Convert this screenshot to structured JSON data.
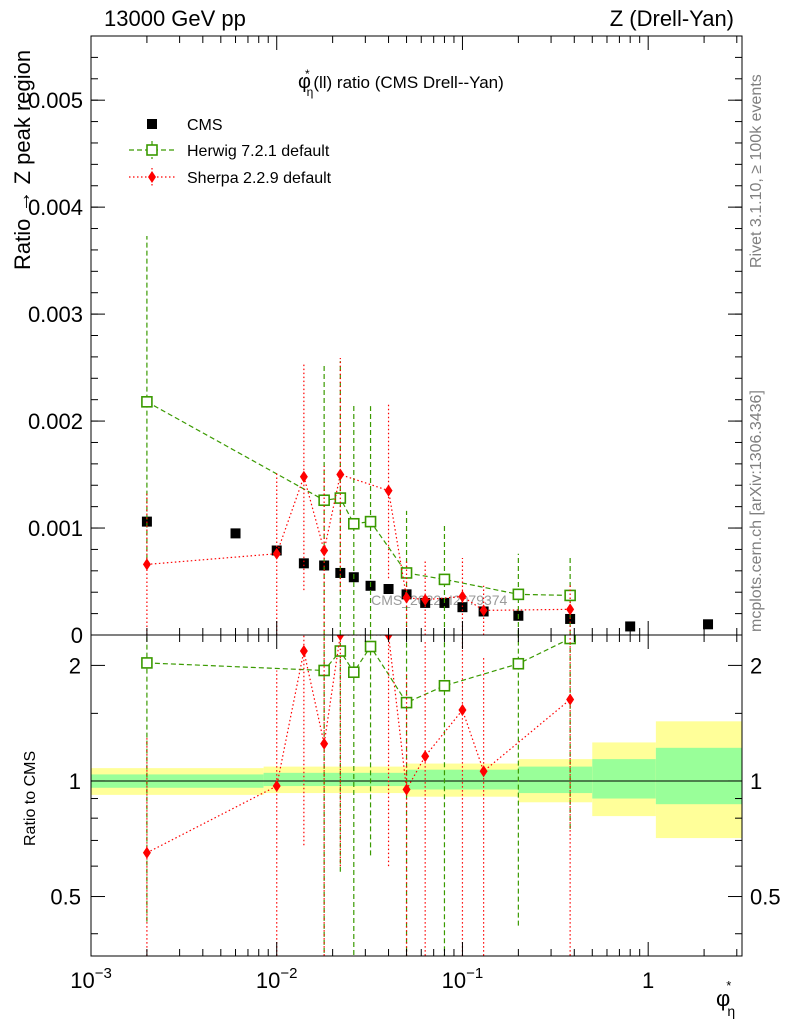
{
  "header": {
    "left": "13000 GeV pp",
    "right": "Z (Drell-Yan)"
  },
  "side_labels": {
    "rivet": "Rivet 3.1.10, ≥ 100k events",
    "mcplots": "mcplots.cern.ch [arXiv:1306.3436]"
  },
  "watermark": "CMS_2022_I2079374",
  "colors": {
    "cms": "#000000",
    "herwig": "#3a9a00",
    "sherpa": "#ff0000",
    "band_outer": "#ffff99",
    "band_inner": "#99ff99"
  },
  "chart_data": [
    {
      "type": "scatter",
      "panel": "main",
      "title": "φ*η(ll) ratio (CMS Drell--Yan)",
      "title_parts": {
        "base": "φ",
        "sup": "*",
        "sub": "η",
        "rest": "(ll) ratio (CMS Drell--Yan)"
      },
      "ylabel": "Ratio → Z peak region",
      "xscale": "log",
      "xlim": [
        0.001,
        3.2
      ],
      "ylim": [
        0,
        0.0056
      ],
      "yticks": [
        0,
        0.001,
        0.002,
        0.003,
        0.004,
        0.005
      ],
      "ytick_labels": [
        "0",
        "0.001",
        "0.002",
        "0.003",
        "0.004",
        "0.005"
      ],
      "legend_position": "top-left",
      "series": [
        {
          "name": "CMS",
          "style": "square-filled",
          "x": [
            0.002,
            0.006,
            0.01,
            0.014,
            0.018,
            0.022,
            0.026,
            0.032,
            0.04,
            0.05,
            0.063,
            0.08,
            0.1,
            0.13,
            0.2,
            0.38,
            0.8,
            2.1
          ],
          "y": [
            0.00106,
            0.00095,
            0.00079,
            0.00067,
            0.00065,
            0.00058,
            0.00054,
            0.00046,
            0.00043,
            0.00038,
            0.0003,
            0.0003,
            0.00026,
            0.00022,
            0.00018,
            0.00015,
            8e-05,
            0.0001
          ]
        },
        {
          "name": "Herwig 7.2.1 default",
          "style": "square-open-dashed",
          "x": [
            0.002,
            0.018,
            0.022,
            0.026,
            0.032,
            0.05,
            0.08,
            0.2,
            0.38
          ],
          "y": [
            0.00218,
            0.00126,
            0.00128,
            0.00104,
            0.00106,
            0.00058,
            0.00052,
            0.00038,
            0.00037
          ],
          "err": [
            0.00155,
            0.00128,
            0.00128,
            0.00112,
            0.00108,
            0.00058,
            0.00052,
            0.00038,
            0.00037
          ]
        },
        {
          "name": "Sherpa 2.2.9 default",
          "style": "diamond-filled-dotted",
          "x": [
            0.002,
            0.01,
            0.014,
            0.018,
            0.022,
            0.04,
            0.05,
            0.063,
            0.1,
            0.13,
            0.38
          ],
          "y": [
            0.00066,
            0.00076,
            0.00148,
            0.00079,
            0.0015,
            0.00135,
            0.00035,
            0.00033,
            0.00036,
            0.00023,
            0.00024
          ],
          "err": [
            0.00066,
            0.00076,
            0.00106,
            0.00079,
            0.00109,
            0.00082,
            0.00035,
            0.00037,
            0.00036,
            0.00023,
            0.00024
          ]
        }
      ]
    },
    {
      "type": "scatter",
      "panel": "ratio",
      "ylabel": "Ratio to CMS",
      "xlabel": "φ*η",
      "xlabel_parts": {
        "base": "φ",
        "sup": "*",
        "sub": "η"
      },
      "xscale": "log",
      "xlim": [
        0.001,
        3.2
      ],
      "yscale": "log",
      "ylim": [
        0.35,
        2.4
      ],
      "yticks": [
        0.5,
        1,
        2
      ],
      "ytick_labels": [
        "0.5",
        "1",
        "2"
      ],
      "xticks": [
        0.001,
        0.01,
        0.1,
        1
      ],
      "xtick_labels": [
        {
          "base": "10",
          "exp": "−3"
        },
        {
          "base": "10",
          "exp": "−2"
        },
        {
          "base": "10",
          "exp": "−1"
        },
        {
          "base": "1",
          "exp": ""
        }
      ],
      "reference_line": 1,
      "band": {
        "edges": [
          0.001,
          0.0085,
          0.05,
          0.2,
          0.5,
          1.1,
          3.2
        ],
        "outer_low": [
          0.92,
          0.93,
          0.91,
          0.88,
          0.81,
          0.71
        ],
        "outer_high": [
          1.08,
          1.09,
          1.11,
          1.14,
          1.26,
          1.43
        ],
        "inner_low": [
          0.96,
          0.97,
          0.95,
          0.93,
          0.9,
          0.87
        ],
        "inner_high": [
          1.04,
          1.05,
          1.07,
          1.09,
          1.14,
          1.22
        ]
      },
      "series": [
        {
          "name": "Herwig 7.2.1 default",
          "style": "square-open-dashed",
          "x": [
            0.002,
            0.018,
            0.022,
            0.026,
            0.032,
            0.05,
            0.08,
            0.2,
            0.38
          ],
          "y": [
            2.03,
            1.94,
            2.18,
            1.92,
            2.24,
            1.6,
            1.77,
            2.02,
            2.35
          ],
          "err": [
            1.6,
            1.6,
            1.6,
            1.6,
            1.6,
            1.5,
            1.5,
            1.6,
            1.6
          ]
        },
        {
          "name": "Sherpa 2.2.9 default",
          "style": "diamond-filled-dotted",
          "x": [
            0.002,
            0.01,
            0.014,
            0.018,
            0.022,
            0.04,
            0.05,
            0.063,
            0.1,
            0.13,
            0.38
          ],
          "y": [
            0.65,
            0.97,
            2.18,
            1.25,
            2.4,
            2.4,
            0.95,
            1.16,
            1.53,
            1.06,
            1.63
          ],
          "err": [
            0.65,
            0.97,
            1.5,
            1.25,
            1.8,
            1.8,
            0.95,
            1.16,
            1.4,
            1.06,
            1.6
          ]
        }
      ]
    }
  ]
}
